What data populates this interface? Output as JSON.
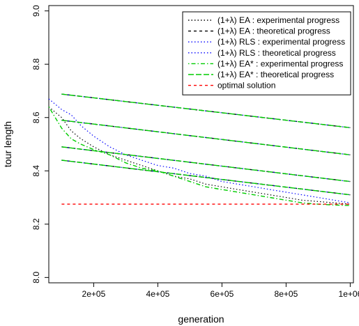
{
  "chart_data": {
    "type": "line",
    "title": "",
    "xlabel": "generation",
    "ylabel": "tour length",
    "xlim": [
      60000,
      1010000
    ],
    "ylim": [
      7.98,
      9.02
    ],
    "x_ticks": [
      200000,
      400000,
      600000,
      800000,
      1000000
    ],
    "x_tick_labels": [
      "2e+05",
      "4e+05",
      "6e+05",
      "8e+05",
      "1e+06"
    ],
    "y_ticks": [
      8.0,
      8.2,
      8.4,
      8.6,
      8.8,
      9.0
    ],
    "y_tick_labels": [
      "8.0",
      "8.2",
      "8.4",
      "8.6",
      "8.8",
      "9.0"
    ],
    "grid": false,
    "legend_position": "top-right",
    "series": [
      {
        "name": "(1+λ) EA : experimental progress",
        "color": "#000000",
        "style": "dotted",
        "x": [
          60000,
          80000,
          100000,
          130000,
          160000,
          200000,
          250000,
          300000,
          350000,
          400000,
          450000,
          500000,
          550000,
          600000,
          650000,
          700000,
          750000,
          800000,
          850000,
          900000,
          950000,
          1000000
        ],
        "y": [
          8.64,
          8.62,
          8.6,
          8.55,
          8.52,
          8.49,
          8.46,
          8.44,
          8.42,
          8.4,
          8.38,
          8.37,
          8.35,
          8.34,
          8.33,
          8.32,
          8.31,
          8.3,
          8.29,
          8.285,
          8.28,
          8.275
        ]
      },
      {
        "name": "(1+λ) EA : theoretical progress",
        "color": "#000000",
        "style": "dashed",
        "groups": [
          {
            "x": [
              100000,
              1000000
            ],
            "y": [
              8.688,
              8.562
            ]
          },
          {
            "x": [
              100000,
              1000000
            ],
            "y": [
              8.59,
              8.46
            ]
          },
          {
            "x": [
              100000,
              1000000
            ],
            "y": [
              8.49,
              8.36
            ]
          },
          {
            "x": [
              100000,
              1000000
            ],
            "y": [
              8.44,
              8.31
            ]
          }
        ]
      },
      {
        "name": "(1+λ) RLS : experimental progress",
        "color": "#0000ff",
        "style": "dotted",
        "x": [
          60000,
          80000,
          100000,
          130000,
          160000,
          200000,
          250000,
          300000,
          350000,
          400000,
          450000,
          500000,
          550000,
          600000,
          650000,
          700000,
          750000,
          800000,
          850000,
          900000,
          950000,
          1000000
        ],
        "y": [
          8.67,
          8.65,
          8.63,
          8.61,
          8.57,
          8.53,
          8.49,
          8.46,
          8.44,
          8.42,
          8.41,
          8.39,
          8.38,
          8.36,
          8.35,
          8.34,
          8.33,
          8.32,
          8.31,
          8.3,
          8.29,
          8.28
        ]
      },
      {
        "name": "(1+λ) RLS : theoretical progress",
        "color": "#0000ff",
        "style": "dotted",
        "groups": [
          {
            "x": [
              100000,
              1000000
            ],
            "y": [
              8.688,
              8.562
            ]
          },
          {
            "x": [
              100000,
              1000000
            ],
            "y": [
              8.59,
              8.46
            ]
          },
          {
            "x": [
              100000,
              1000000
            ],
            "y": [
              8.49,
              8.36
            ]
          },
          {
            "x": [
              100000,
              1000000
            ],
            "y": [
              8.44,
              8.31
            ]
          }
        ]
      },
      {
        "name": "(1+λ) EA* : experimental progress",
        "color": "#00cc00",
        "style": "dotdash",
        "x": [
          60000,
          80000,
          100000,
          130000,
          160000,
          200000,
          250000,
          300000,
          350000,
          400000,
          450000,
          500000,
          550000,
          600000,
          650000,
          700000,
          750000,
          800000,
          850000,
          900000,
          950000,
          1000000
        ],
        "y": [
          8.64,
          8.6,
          8.56,
          8.52,
          8.5,
          8.48,
          8.46,
          8.43,
          8.41,
          8.4,
          8.38,
          8.36,
          8.34,
          8.33,
          8.32,
          8.31,
          8.3,
          8.29,
          8.28,
          8.275,
          8.272,
          8.27
        ]
      },
      {
        "name": "(1+λ) EA* : theoretical progress",
        "color": "#00cc00",
        "style": "longdash",
        "groups": [
          {
            "x": [
              100000,
              1000000
            ],
            "y": [
              8.688,
              8.562
            ]
          },
          {
            "x": [
              100000,
              1000000
            ],
            "y": [
              8.59,
              8.46
            ]
          },
          {
            "x": [
              100000,
              1000000
            ],
            "y": [
              8.49,
              8.36
            ]
          },
          {
            "x": [
              100000,
              1000000
            ],
            "y": [
              8.44,
              8.31
            ]
          }
        ]
      },
      {
        "name": "optimal solution",
        "color": "#ff0000",
        "style": "dashed",
        "x": [
          100000,
          1000000
        ],
        "y": [
          8.275,
          8.275
        ]
      }
    ]
  }
}
